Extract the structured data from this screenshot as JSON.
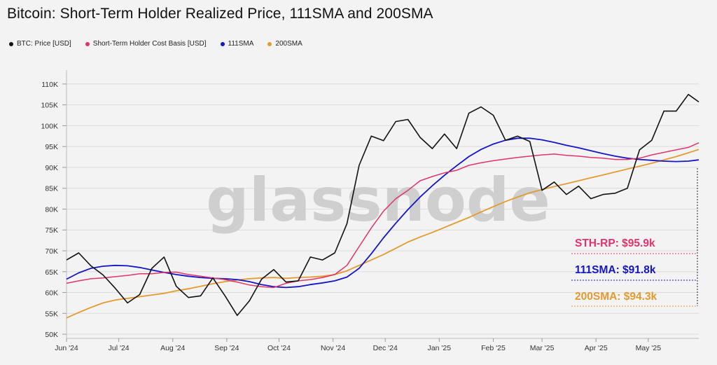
{
  "title": "Bitcoin: Short-Term Holder Realized Price, 111SMA and 200SMA",
  "watermark": "glassnode",
  "chart_data": {
    "type": "line",
    "x": [
      "2024-06-01",
      "2024-06-08",
      "2024-06-15",
      "2024-06-22",
      "2024-06-29",
      "2024-07-06",
      "2024-07-13",
      "2024-07-20",
      "2024-07-27",
      "2024-08-03",
      "2024-08-10",
      "2024-08-17",
      "2024-08-24",
      "2024-08-31",
      "2024-09-07",
      "2024-09-14",
      "2024-09-21",
      "2024-09-28",
      "2024-10-05",
      "2024-10-12",
      "2024-10-19",
      "2024-10-26",
      "2024-11-02",
      "2024-11-09",
      "2024-11-16",
      "2024-11-23",
      "2024-11-30",
      "2024-12-07",
      "2024-12-14",
      "2024-12-21",
      "2024-12-28",
      "2025-01-04",
      "2025-01-11",
      "2025-01-18",
      "2025-01-25",
      "2025-02-01",
      "2025-02-08",
      "2025-02-15",
      "2025-02-22",
      "2025-03-01",
      "2025-03-08",
      "2025-03-15",
      "2025-03-22",
      "2025-03-29",
      "2025-04-05",
      "2025-04-12",
      "2025-04-19",
      "2025-04-26",
      "2025-05-03",
      "2025-05-10",
      "2025-05-17",
      "2025-05-24",
      "2025-05-30"
    ],
    "xlabel": "",
    "ylabel": "",
    "ylim": [
      49000,
      112500
    ],
    "y_ticks": [
      50000,
      55000,
      60000,
      65000,
      70000,
      75000,
      80000,
      85000,
      90000,
      95000,
      100000,
      105000,
      110000
    ],
    "y_tick_labels": [
      "50K",
      "55K",
      "60K",
      "65K",
      "70K",
      "75K",
      "80K",
      "85K",
      "90K",
      "95K",
      "100K",
      "105K",
      "110K"
    ],
    "x_ticks": [
      "2024-06-01",
      "2024-07-01",
      "2024-08-01",
      "2024-09-01",
      "2024-10-01",
      "2024-11-01",
      "2024-12-01",
      "2025-01-01",
      "2025-02-01",
      "2025-03-01",
      "2025-04-01",
      "2025-05-01"
    ],
    "x_tick_labels": [
      "Jun '24",
      "Jul '24",
      "Aug '24",
      "Sep '24",
      "Oct '24",
      "Nov '24",
      "Dec '24",
      "Jan '25",
      "Feb '25",
      "Mar '25",
      "Apr '25",
      "May '25"
    ],
    "grid": "horizontal",
    "legend_position": "top-left",
    "series": [
      {
        "name": "BTC: Price [USD]",
        "color": "#111111",
        "values": [
          67800,
          69500,
          66400,
          64200,
          61000,
          57500,
          59500,
          65800,
          68500,
          61500,
          58800,
          59200,
          63500,
          59200,
          54500,
          58000,
          63200,
          65500,
          62500,
          62800,
          68500,
          67800,
          69500,
          76500,
          90500,
          97500,
          96400,
          101000,
          101500,
          97200,
          94500,
          98000,
          94500,
          103000,
          104500,
          102500,
          96500,
          97500,
          96200,
          84500,
          86500,
          83500,
          85500,
          82500,
          83500,
          83800,
          85000,
          94200,
          96500,
          103500,
          103500,
          107500,
          105700
        ]
      },
      {
        "name": "Short-Term Holder Cost Basis [USD]",
        "color": "#e0336b",
        "values": [
          62200,
          62800,
          63300,
          63500,
          63800,
          64100,
          64500,
          64500,
          64800,
          64900,
          64300,
          63900,
          63500,
          63100,
          62500,
          61800,
          61400,
          61200,
          62200,
          62800,
          63100,
          63600,
          64300,
          66500,
          71000,
          75500,
          79500,
          82500,
          84500,
          86800,
          87800,
          88700,
          89300,
          90500,
          91100,
          91600,
          92000,
          92400,
          92700,
          93000,
          93200,
          92900,
          92700,
          92400,
          92200,
          91900,
          91900,
          92200,
          93000,
          93600,
          94200,
          94800,
          95900
        ]
      },
      {
        "name": "111SMA",
        "color": "#1414c8",
        "values": [
          63200,
          64700,
          65800,
          66300,
          66500,
          66400,
          66000,
          65400,
          64800,
          64300,
          63900,
          63600,
          63400,
          63300,
          63100,
          62600,
          61900,
          61400,
          61200,
          61400,
          61900,
          62300,
          62800,
          63700,
          65800,
          69300,
          73100,
          76600,
          79900,
          82900,
          85600,
          88100,
          90400,
          92600,
          94300,
          95600,
          96500,
          97000,
          97000,
          96600,
          96000,
          95300,
          94700,
          94000,
          93300,
          92700,
          92200,
          91900,
          91700,
          91500,
          91400,
          91500,
          91800
        ]
      },
      {
        "name": "200SMA",
        "color": "#e39a2f",
        "values": [
          53900,
          55200,
          56400,
          57500,
          58200,
          58600,
          59000,
          59400,
          59800,
          60400,
          60900,
          61500,
          62100,
          62600,
          63000,
          63300,
          63500,
          63600,
          63400,
          63600,
          63700,
          63900,
          64300,
          65200,
          66500,
          67800,
          69100,
          70600,
          72100,
          73300,
          74400,
          75600,
          76800,
          78000,
          79300,
          80600,
          81800,
          82900,
          83900,
          84700,
          85400,
          86100,
          86800,
          87500,
          88200,
          88900,
          89600,
          90300,
          91000,
          91800,
          92600,
          93500,
          94300
        ]
      }
    ],
    "annotations": [
      {
        "label": "STH-RP: $95.9k",
        "color": "#e0336b"
      },
      {
        "label": "111SMA: $91.8k",
        "color": "#1414c8"
      },
      {
        "label": "200SMA: $94.3k",
        "color": "#e39a2f"
      }
    ]
  }
}
